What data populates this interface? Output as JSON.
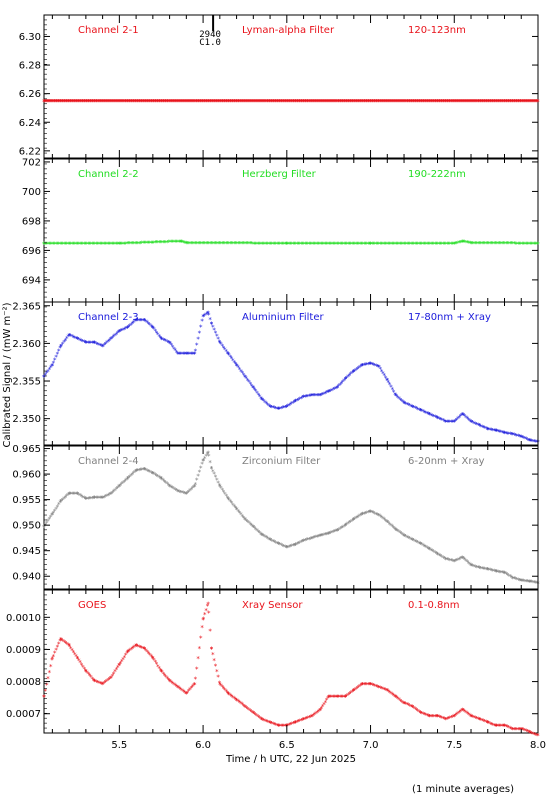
{
  "chart_data": {
    "type": "scatter",
    "xlabel": "Time / h UTC, 22 Jun 2025",
    "ylabel": "Calibrated Signal / (mW m⁻²)",
    "footnote": "(1 minute averages)",
    "xlim": [
      5.05,
      8.0
    ],
    "x_ticks": [
      "5.5",
      "6.0",
      "6.5",
      "7.0",
      "7.5",
      "8.0"
    ],
    "flare_marker": {
      "x": 6.03,
      "label1": "2940",
      "label2": "C1.0"
    },
    "panels": [
      {
        "channel": "Channel 2-1",
        "filter": "Lyman-alpha Filter",
        "band": "120-123nm",
        "color": "#e8121a",
        "ylim": [
          6.215,
          6.315
        ],
        "y_ticks": [
          "6.22",
          "6.24",
          "6.26",
          "6.28",
          "6.30"
        ],
        "x": [
          5.05,
          8.0
        ],
        "values": [
          6.254,
          6.254
        ]
      },
      {
        "channel": "Channel 2-2",
        "filter": "Herzberg Filter",
        "band": "190-222nm",
        "color": "#22dd22",
        "ylim": [
          692.5,
          702.2
        ],
        "y_ticks": [
          "694",
          "696",
          "698",
          "700",
          "702"
        ],
        "x": [
          5.05,
          5.5,
          5.87,
          5.9,
          6.5,
          7.0,
          7.5,
          7.55,
          7.6,
          8.0
        ],
        "values": [
          696.4,
          696.4,
          696.55,
          696.45,
          696.4,
          696.4,
          696.4,
          696.55,
          696.45,
          696.4
        ]
      },
      {
        "channel": "Channel 2-3",
        "filter": "Aluminium Filter",
        "band": "17-80nm + Xray",
        "color": "#1a1adb",
        "ylim": [
          2.3465,
          2.3655
        ],
        "y_ticks": [
          "2.350",
          "2.355",
          "2.360",
          "2.365"
        ],
        "x": [
          5.05,
          5.1,
          5.15,
          5.2,
          5.25,
          5.3,
          5.35,
          5.4,
          5.45,
          5.5,
          5.55,
          5.6,
          5.65,
          5.7,
          5.75,
          5.8,
          5.85,
          5.9,
          5.95,
          6.0,
          6.03,
          6.05,
          6.1,
          6.15,
          6.2,
          6.25,
          6.3,
          6.35,
          6.4,
          6.45,
          6.5,
          6.55,
          6.6,
          6.65,
          6.7,
          6.75,
          6.8,
          6.85,
          6.9,
          6.95,
          7.0,
          7.05,
          7.1,
          7.15,
          7.2,
          7.25,
          7.3,
          7.35,
          7.4,
          7.45,
          7.5,
          7.55,
          7.6,
          7.65,
          7.7,
          7.75,
          7.8,
          7.85,
          7.9,
          7.95,
          8.0
        ],
        "values": [
          2.3555,
          2.357,
          2.3595,
          2.361,
          2.3605,
          2.36,
          2.36,
          2.3595,
          2.3605,
          2.3615,
          2.362,
          2.363,
          2.363,
          2.362,
          2.3605,
          2.36,
          2.3585,
          2.3585,
          2.3585,
          2.3635,
          2.364,
          2.3625,
          2.36,
          2.3585,
          2.357,
          2.3555,
          2.354,
          2.3525,
          2.3515,
          2.3512,
          2.3515,
          2.3522,
          2.3528,
          2.353,
          2.353,
          2.3535,
          2.354,
          2.3552,
          2.3562,
          2.357,
          2.3572,
          2.3568,
          2.355,
          2.353,
          2.352,
          2.3515,
          2.351,
          2.3505,
          2.35,
          2.3495,
          2.3495,
          2.3505,
          2.3495,
          2.349,
          2.3485,
          2.3483,
          2.348,
          2.3478,
          2.3475,
          2.347,
          2.3468
        ]
      },
      {
        "channel": "Channel 2-4",
        "filter": "Zirconium Filter",
        "band": "6-20nm + Xray",
        "color": "#808080",
        "ylim": [
          0.9375,
          0.9655
        ],
        "y_ticks": [
          "0.940",
          "0.945",
          "0.950",
          "0.955",
          "0.960",
          "0.965"
        ],
        "x": [
          5.05,
          5.1,
          5.15,
          5.2,
          5.25,
          5.3,
          5.35,
          5.4,
          5.45,
          5.5,
          5.55,
          5.6,
          5.65,
          5.7,
          5.75,
          5.8,
          5.85,
          5.9,
          5.95,
          6.0,
          6.03,
          6.05,
          6.1,
          6.15,
          6.2,
          6.25,
          6.3,
          6.35,
          6.4,
          6.45,
          6.5,
          6.55,
          6.6,
          6.65,
          6.7,
          6.75,
          6.8,
          6.85,
          6.9,
          6.95,
          7.0,
          7.05,
          7.1,
          7.15,
          7.2,
          7.25,
          7.3,
          7.35,
          7.4,
          7.45,
          7.5,
          7.55,
          7.6,
          7.65,
          7.7,
          7.75,
          7.8,
          7.85,
          7.9,
          7.95,
          8.0
        ],
        "values": [
          0.9495,
          0.952,
          0.9545,
          0.956,
          0.956,
          0.955,
          0.9552,
          0.9552,
          0.956,
          0.9575,
          0.959,
          0.9605,
          0.9608,
          0.96,
          0.959,
          0.9575,
          0.9565,
          0.956,
          0.9575,
          0.9625,
          0.964,
          0.961,
          0.9575,
          0.955,
          0.953,
          0.951,
          0.9495,
          0.948,
          0.947,
          0.9462,
          0.9455,
          0.946,
          0.9468,
          0.9473,
          0.9478,
          0.9482,
          0.9488,
          0.9498,
          0.951,
          0.952,
          0.9525,
          0.9518,
          0.9505,
          0.949,
          0.9478,
          0.947,
          0.9462,
          0.9452,
          0.9442,
          0.9432,
          0.9428,
          0.9435,
          0.942,
          0.9415,
          0.9412,
          0.9408,
          0.9405,
          0.9395,
          0.939,
          0.9388,
          0.9385
        ]
      },
      {
        "channel": "GOES",
        "filter": "Xray Sensor",
        "band": "0.1-0.8nm",
        "color": "#e8121a",
        "ylim": [
          0.00064,
          0.001085
        ],
        "y_ticks": [
          "0.0007",
          "0.0008",
          "0.0009",
          "0.0010"
        ],
        "x": [
          5.05,
          5.1,
          5.15,
          5.2,
          5.25,
          5.3,
          5.35,
          5.4,
          5.45,
          5.5,
          5.55,
          5.6,
          5.65,
          5.7,
          5.75,
          5.8,
          5.85,
          5.9,
          5.95,
          6.0,
          6.03,
          6.05,
          6.1,
          6.15,
          6.2,
          6.25,
          6.3,
          6.35,
          6.4,
          6.45,
          6.5,
          6.55,
          6.6,
          6.65,
          6.7,
          6.75,
          6.8,
          6.85,
          6.9,
          6.95,
          7.0,
          7.05,
          7.1,
          7.15,
          7.2,
          7.25,
          7.3,
          7.35,
          7.4,
          7.45,
          7.5,
          7.55,
          7.6,
          7.65,
          7.7,
          7.75,
          7.8,
          7.85,
          7.9,
          7.95,
          8.0
        ],
        "values": [
          0.00075,
          0.00087,
          0.00093,
          0.00091,
          0.00087,
          0.00083,
          0.0008,
          0.00079,
          0.00081,
          0.00085,
          0.00089,
          0.00091,
          0.0009,
          0.00087,
          0.00083,
          0.0008,
          0.00078,
          0.00076,
          0.00079,
          0.00099,
          0.00104,
          0.0009,
          0.00079,
          0.00076,
          0.00074,
          0.00072,
          0.0007,
          0.00068,
          0.00067,
          0.00066,
          0.00066,
          0.00067,
          0.00068,
          0.00069,
          0.00071,
          0.00075,
          0.00075,
          0.00075,
          0.00077,
          0.00079,
          0.00079,
          0.00078,
          0.00077,
          0.00075,
          0.00073,
          0.00072,
          0.0007,
          0.00069,
          0.00069,
          0.00068,
          0.00069,
          0.00071,
          0.00069,
          0.00068,
          0.00067,
          0.00066,
          0.00066,
          0.00065,
          0.00065,
          0.00064,
          0.00063
        ]
      }
    ]
  }
}
